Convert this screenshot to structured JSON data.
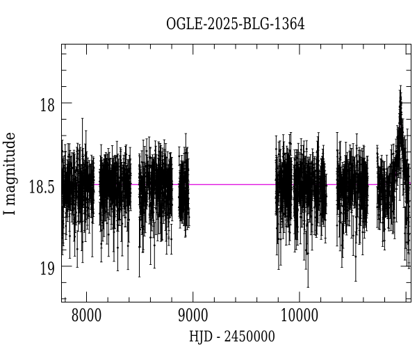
{
  "figure": {
    "title": "OGLE-2025-BLG-1364",
    "background": "#ffffff",
    "frame_color": "#000000",
    "x_axis": {
      "label": "HJD - 2450000",
      "range": [
        7765,
        11048
      ],
      "major_tick_step": 1000,
      "minor_tick_step": 200,
      "major_ticks": [
        {
          "value": 8000,
          "label": "8000"
        },
        {
          "value": 9000,
          "label": "9000"
        },
        {
          "value": 10000,
          "label": "10000"
        },
        {
          "value": 11000,
          "label": ""
        }
      ]
    },
    "y_axis": {
      "label": "I magnitude",
      "range": [
        17.64,
        19.22
      ],
      "inverted": true,
      "major_tick_step": 0.5,
      "minor_tick_step": 0.1,
      "major_ticks": [
        {
          "value": 18,
          "label": "18"
        },
        {
          "value": 18.5,
          "label": "18.5"
        },
        {
          "value": 19,
          "label": "19"
        }
      ]
    }
  },
  "chart_data": {
    "type": "scatter",
    "title": "OGLE-2025-BLG-1364",
    "xlabel": "HJD - 2450000",
    "ylabel": "I magnitude",
    "xlim": [
      7765,
      11048
    ],
    "ylim": [
      19.22,
      17.64
    ],
    "grid": false,
    "legend": false,
    "baseline_mag": 18.5,
    "point_color": "#000000",
    "marker": "filled-circle-with-error-bars",
    "rng_seed": 20251364,
    "seasons": [
      {
        "t_start": 7765,
        "t_end": 8071,
        "n": 280,
        "sigma": 0.08
      },
      {
        "t_start": 8123,
        "t_end": 8416,
        "n": 270,
        "sigma": 0.08
      },
      {
        "t_start": 8495,
        "t_end": 8807,
        "n": 295,
        "sigma": 0.082
      },
      {
        "t_start": 8866,
        "t_end": 8963,
        "n": 95,
        "sigma": 0.08
      },
      {
        "t_start": 9778,
        "t_end": 9928,
        "n": 175,
        "sigma": 0.095
      },
      {
        "t_start": 9947,
        "t_end": 10253,
        "n": 285,
        "sigma": 0.085
      },
      {
        "t_start": 10351,
        "t_end": 10644,
        "n": 260,
        "sigma": 0.085
      },
      {
        "t_start": 10729,
        "t_end": 11029,
        "n": 175,
        "sigma": 0.088
      }
    ],
    "event_sampling": {
      "t_start": 10910,
      "t_end": 10990,
      "cadence": 1.3,
      "noise": 0.028,
      "err": 0.034,
      "extra_peak": 0.105,
      "extra_width": 7,
      "peak_data_mag": 17.99
    },
    "faint_tail": {
      "t_start": 10992,
      "t_end": 11028,
      "n": 8,
      "mag_center": 18.6,
      "mag_spread": 0.18,
      "err_base": 0.11
    },
    "model": {
      "kind": "paczynski",
      "color": "#e012e0",
      "t0": 10950,
      "tE": 25,
      "u0": 0.88,
      "baseline_mag": 18.5,
      "peak_model_mag": 18.1
    }
  }
}
